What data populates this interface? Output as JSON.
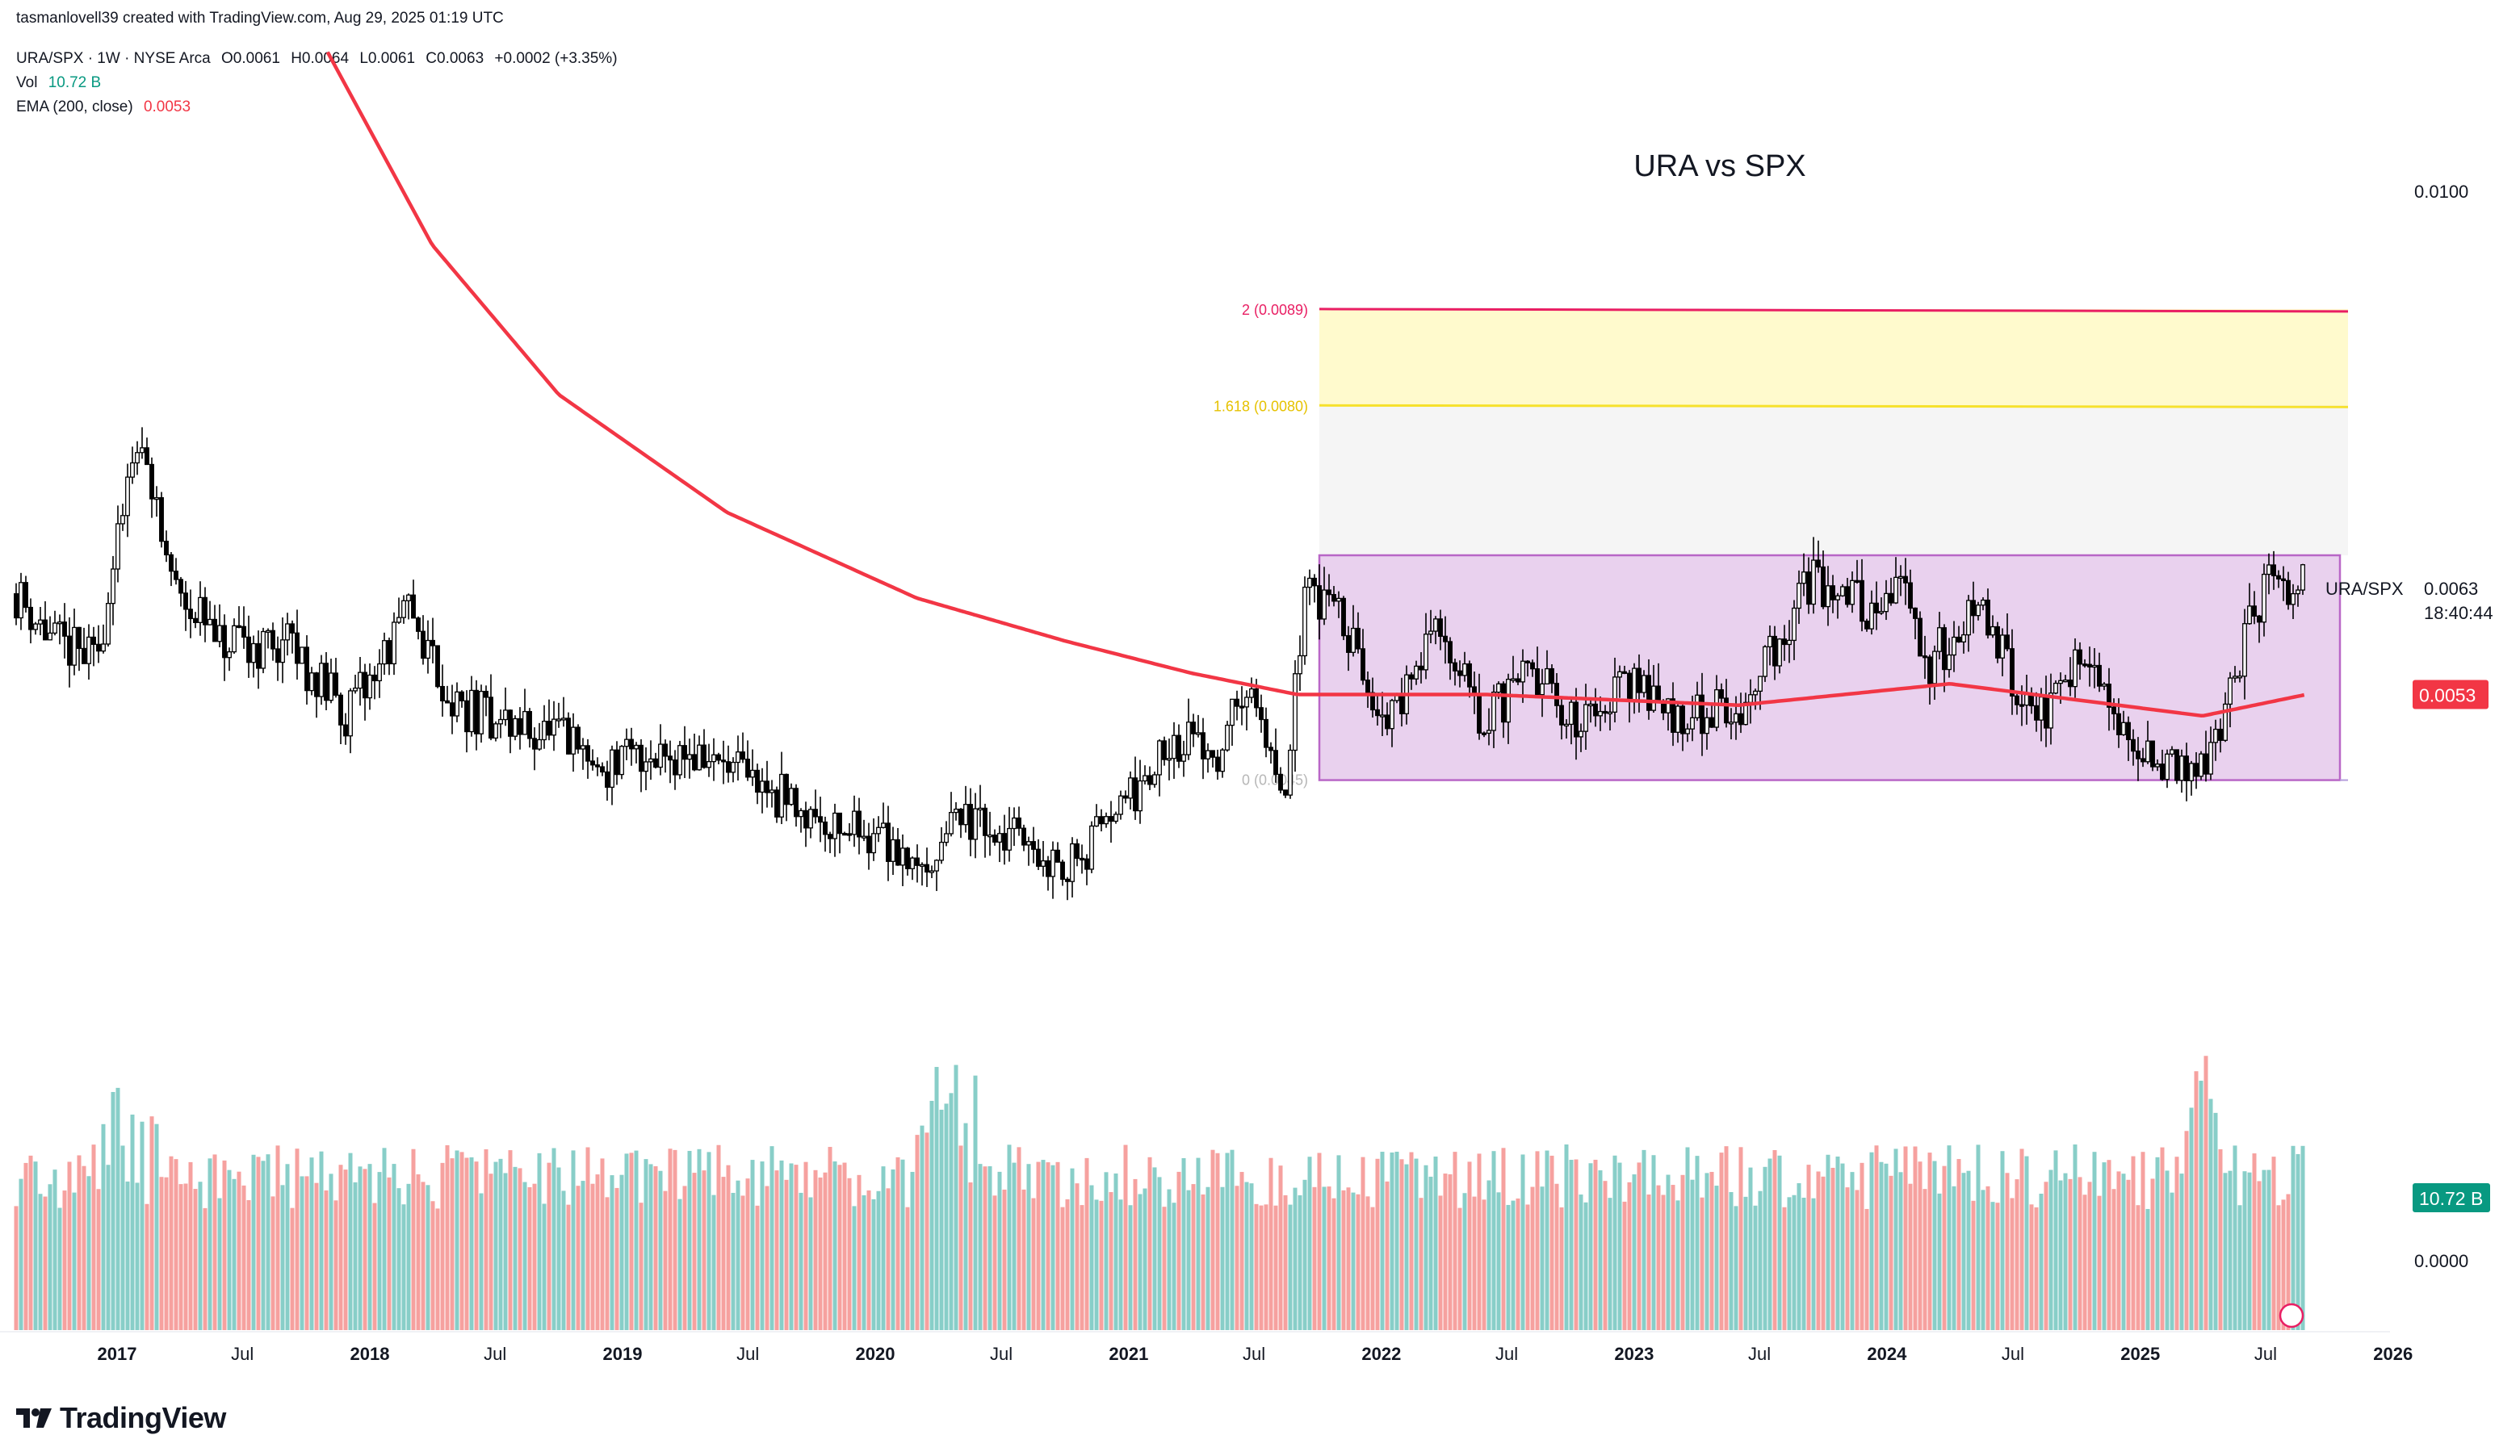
{
  "header": {
    "credit": "tasmanlovell39 created with TradingView.com, Aug 29, 2025 01:19 UTC",
    "symbol_line": "URA/SPX · 1W · NYSE Arca",
    "ohlc": {
      "o": "O0.0061",
      "h": "H0.0064",
      "l": "L0.0061",
      "c": "C0.0063",
      "chg": "+0.0002 (+3.35%)"
    },
    "vol_label": "Vol",
    "vol_value": "10.72 B",
    "ema_label": "EMA (200, close)",
    "ema_value": "0.0053"
  },
  "chart_data": {
    "type": "candlestick",
    "title": "URA vs SPX",
    "symbol": "URA/SPX",
    "interval": "1W",
    "ylim": [
      0.0,
      0.0105
    ],
    "y_ticks": [
      "0.0100",
      "0.0000"
    ],
    "x_ticks": [
      "2017",
      "Jul",
      "2018",
      "Jul",
      "2019",
      "Jul",
      "2020",
      "Jul",
      "2021",
      "Jul",
      "2022",
      "Jul",
      "2023",
      "Jul",
      "2024",
      "Jul",
      "2025",
      "Jul",
      "2026"
    ],
    "price_path": [
      [
        "2016-08-01",
        0.0063
      ],
      [
        "2016-10-01",
        0.0058
      ],
      [
        "2016-12-01",
        0.0056
      ],
      [
        "2017-01-15",
        0.0071
      ],
      [
        "2017-02-05",
        0.0075
      ],
      [
        "2017-03-15",
        0.0065
      ],
      [
        "2017-06-01",
        0.0057
      ],
      [
        "2017-09-01",
        0.0058
      ],
      [
        "2017-12-01",
        0.0051
      ],
      [
        "2018-03-01",
        0.0061
      ],
      [
        "2018-05-01",
        0.0052
      ],
      [
        "2018-08-01",
        0.005
      ],
      [
        "2018-10-01",
        0.0049
      ],
      [
        "2018-12-01",
        0.0046
      ],
      [
        "2019-03-01",
        0.0048
      ],
      [
        "2019-05-01",
        0.0047
      ],
      [
        "2019-08-01",
        0.0044
      ],
      [
        "2019-11-01",
        0.0041
      ],
      [
        "2020-01-01",
        0.004
      ],
      [
        "2020-03-20",
        0.0037
      ],
      [
        "2020-05-01",
        0.0041
      ],
      [
        "2020-08-01",
        0.0039
      ],
      [
        "2020-10-15",
        0.0037
      ],
      [
        "2021-01-01",
        0.0043
      ],
      [
        "2021-03-01",
        0.0049
      ],
      [
        "2021-05-15",
        0.0048
      ],
      [
        "2021-06-20",
        0.0054
      ],
      [
        "2021-08-15",
        0.0044
      ],
      [
        "2021-09-15",
        0.0063
      ],
      [
        "2021-11-01",
        0.006
      ],
      [
        "2022-01-15",
        0.005
      ],
      [
        "2022-03-15",
        0.006
      ],
      [
        "2022-06-01",
        0.005
      ],
      [
        "2022-08-01",
        0.0056
      ],
      [
        "2022-10-01",
        0.005
      ],
      [
        "2023-01-01",
        0.0055
      ],
      [
        "2023-03-01",
        0.0051
      ],
      [
        "2023-06-01",
        0.0052
      ],
      [
        "2023-09-15",
        0.0064
      ],
      [
        "2023-12-01",
        0.0061
      ],
      [
        "2024-01-20",
        0.0064
      ],
      [
        "2024-03-01",
        0.0056
      ],
      [
        "2024-05-15",
        0.0061
      ],
      [
        "2024-08-01",
        0.005
      ],
      [
        "2024-10-15",
        0.0057
      ],
      [
        "2024-12-01",
        0.0049
      ],
      [
        "2025-02-01",
        0.0047
      ],
      [
        "2025-04-05",
        0.0045
      ],
      [
        "2025-05-15",
        0.0055
      ],
      [
        "2025-07-01",
        0.0063
      ],
      [
        "2025-08-29",
        0.0063
      ]
    ],
    "ema": {
      "name": "EMA (200, close)",
      "color": "#f23645",
      "path": [
        [
          "2017-11-01",
          0.0113
        ],
        [
          "2018-04-01",
          0.0095
        ],
        [
          "2018-10-01",
          0.0081
        ],
        [
          "2019-06-01",
          0.007
        ],
        [
          "2020-03-01",
          0.0062
        ],
        [
          "2020-10-01",
          0.0058
        ],
        [
          "2021-04-01",
          0.0055
        ],
        [
          "2021-09-01",
          0.0053
        ],
        [
          "2022-06-01",
          0.0053
        ],
        [
          "2023-06-01",
          0.0052
        ],
        [
          "2024-04-01",
          0.0054
        ],
        [
          "2025-04-01",
          0.0051
        ],
        [
          "2025-08-29",
          0.0053
        ]
      ]
    },
    "volume": {
      "last": "10.72 B",
      "colors": {
        "up": "#26a69a",
        "down": "#ef5350"
      }
    },
    "fib_levels": [
      {
        "label": "2 (0.0089)",
        "value": 0.0089,
        "color": "#e91e63"
      },
      {
        "label": "1.618 (0.0080)",
        "value": 0.008,
        "color": "#ffeb3b"
      },
      {
        "label": "0 (0.0045)",
        "value": 0.0045,
        "color": "#9c27b0"
      }
    ],
    "range_box": {
      "top": 0.0066,
      "bottom": 0.0045,
      "color": "#9c27b0"
    },
    "price_labels": {
      "symbol": "URA/SPX",
      "last": "0.0063",
      "countdown": "18:40:44",
      "ema": "0.0053",
      "vol": "10.72 B"
    },
    "grid": false
  },
  "footer": {
    "logo_text": "TradingView"
  },
  "colors": {
    "up": "#089981",
    "down": "#f23645",
    "text": "#131722"
  }
}
